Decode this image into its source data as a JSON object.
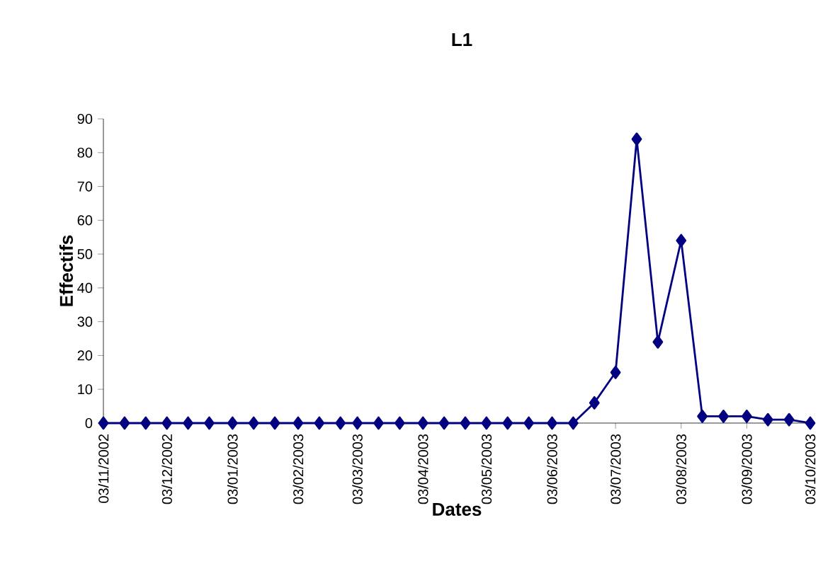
{
  "chart_data": {
    "type": "line",
    "title": "L1",
    "xlabel": "Dates",
    "ylabel": "Effectifs",
    "x": [
      "2002-11-03",
      "2002-11-13",
      "2002-11-23",
      "2002-12-03",
      "2002-12-13",
      "2002-12-23",
      "2003-01-03",
      "2003-01-13",
      "2003-01-23",
      "2003-02-03",
      "2003-02-13",
      "2003-02-23",
      "2003-03-03",
      "2003-03-13",
      "2003-03-23",
      "2003-04-03",
      "2003-04-13",
      "2003-04-23",
      "2003-05-03",
      "2003-05-13",
      "2003-05-23",
      "2003-06-03",
      "2003-06-13",
      "2003-06-23",
      "2003-07-03",
      "2003-07-13",
      "2003-07-23",
      "2003-08-03",
      "2003-08-13",
      "2003-08-23",
      "2003-09-03",
      "2003-09-13",
      "2003-09-23",
      "2003-10-03"
    ],
    "series": [
      {
        "color": "#000080",
        "values": [
          0,
          0,
          0,
          0,
          0,
          0,
          0,
          0,
          0,
          0,
          0,
          0,
          0,
          0,
          0,
          0,
          0,
          0,
          0,
          0,
          0,
          0,
          0,
          6,
          15,
          84,
          24,
          54,
          2,
          2,
          2,
          1,
          1,
          0
        ]
      }
    ],
    "marker": "diamond",
    "line_style": "solid",
    "grid": false,
    "ylim": [
      0,
      90
    ],
    "yticks": [
      0,
      10,
      20,
      30,
      40,
      50,
      60,
      70,
      80,
      90
    ],
    "xlim": [
      "2002-11-03",
      "2003-10-03"
    ],
    "xticks": [
      {
        "value": "2002-11-03",
        "label": "03/11/2002"
      },
      {
        "value": "2002-12-03",
        "label": "03/12/2002"
      },
      {
        "value": "2003-01-03",
        "label": "03/01/2003"
      },
      {
        "value": "2003-02-03",
        "label": "03/02/2003"
      },
      {
        "value": "2003-03-03",
        "label": "03/03/2003"
      },
      {
        "value": "2003-04-03",
        "label": "03/04/2003"
      },
      {
        "value": "2003-05-03",
        "label": "03/05/2003"
      },
      {
        "value": "2003-06-03",
        "label": "03/06/2003"
      },
      {
        "value": "2003-07-03",
        "label": "03/07/2003"
      },
      {
        "value": "2003-08-03",
        "label": "03/08/2003"
      },
      {
        "value": "2003-09-03",
        "label": "03/09/2003"
      },
      {
        "value": "2003-10-03",
        "label": "03/10/2003"
      }
    ]
  }
}
